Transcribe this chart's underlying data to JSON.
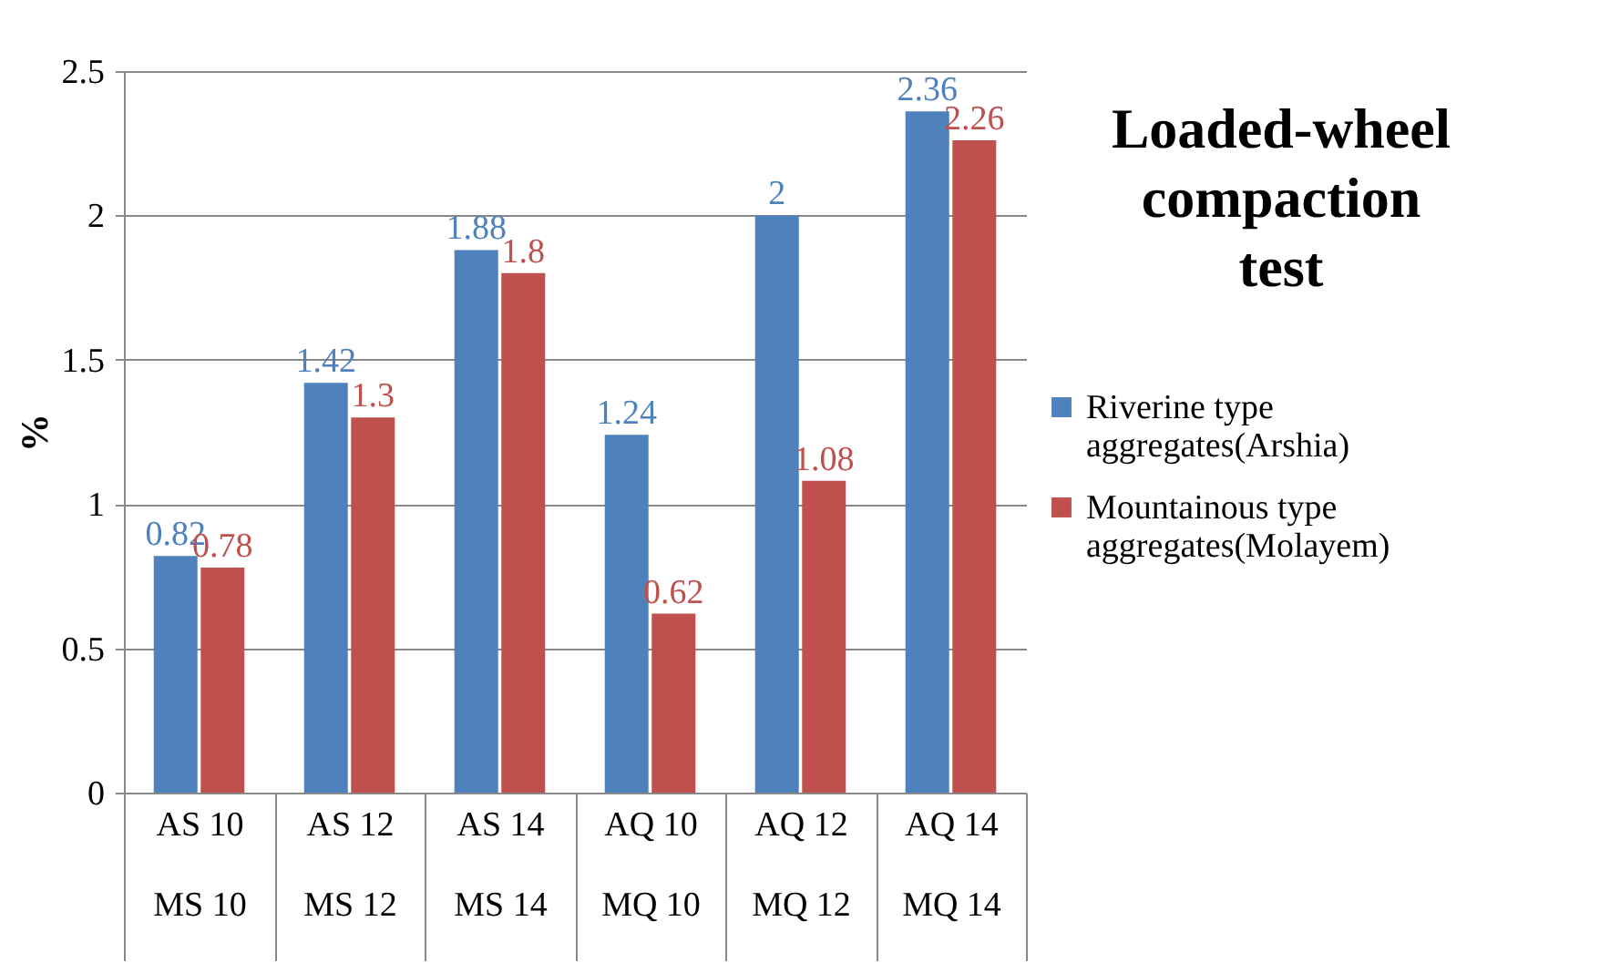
{
  "chart_data": {
    "type": "bar",
    "title": "Loaded-wheel compaction test",
    "ylabel": "%",
    "categories": [
      "AS 10\nMS 10",
      "AS 12\nMS 12",
      "AS 14\nMS 14",
      "AQ 10\nMQ 10",
      "AQ 12\nMQ 12",
      "AQ 14\nMQ 14"
    ],
    "series": [
      {
        "name": "Riverine type aggregates(Arshia)",
        "color": "#4f81bd",
        "values": [
          0.82,
          1.42,
          1.88,
          1.24,
          2,
          2.36
        ]
      },
      {
        "name": "Mountainous type aggregates(Molayem)",
        "color": "#c0504d",
        "values": [
          0.78,
          1.3,
          1.8,
          0.62,
          1.08,
          2.26
        ]
      }
    ],
    "ylim": [
      0,
      2.5
    ],
    "yticks": [
      {
        "value": 0,
        "label": "0"
      },
      {
        "value": 0.5,
        "label": "0.5"
      },
      {
        "value": 1,
        "label": "1"
      },
      {
        "value": 1.5,
        "label": "1.5"
      },
      {
        "value": 2,
        "label": "2"
      },
      {
        "value": 2.5,
        "label": "2.5"
      }
    ],
    "grid": "y",
    "legend": "right",
    "data_labels": true
  }
}
